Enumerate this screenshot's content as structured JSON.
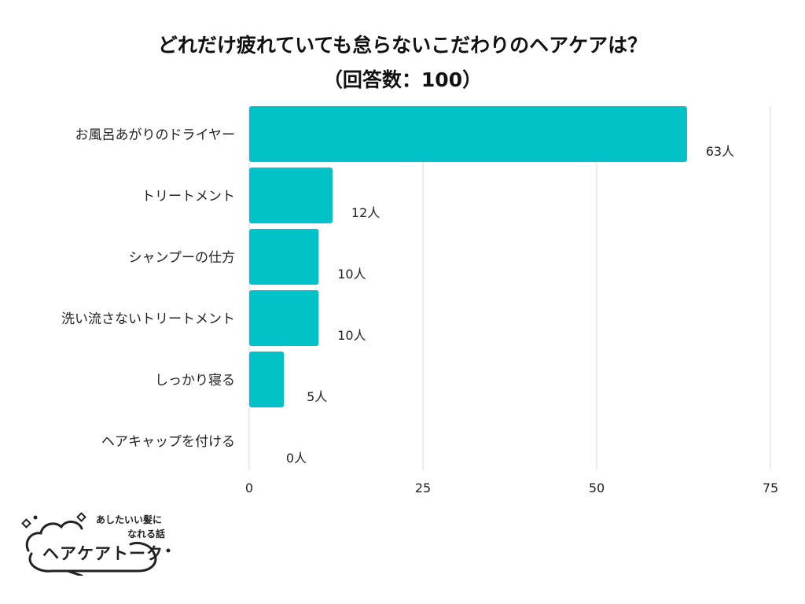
{
  "title_line1": "どれだけ疲れていても怠らないこだわりのヘアケアは？",
  "title_line2": "（回答数：100）",
  "chart_data": {
    "type": "bar",
    "orientation": "horizontal",
    "categories": [
      "お風呂あがりのドライヤー",
      "トリートメント",
      "シャンプーの仕方",
      "洗い流さないトリートメント",
      "しっかり寝る",
      "ヘアキャップを付ける"
    ],
    "values": [
      63,
      12,
      10,
      10,
      5,
      0
    ],
    "value_labels": [
      "63人",
      "12人",
      "10人",
      "10人",
      "5人",
      "0人"
    ],
    "xlim": [
      0,
      75
    ],
    "xticks": [
      0,
      25,
      50,
      75
    ],
    "xtick_labels": [
      "0",
      "25",
      "50",
      "75"
    ],
    "grid": true,
    "bar_color": "#00C2C7"
  },
  "logo": {
    "tagline_line1": "あしたいい髪に",
    "tagline_line2": "なれる話",
    "brand": "ヘアケアトーク"
  }
}
